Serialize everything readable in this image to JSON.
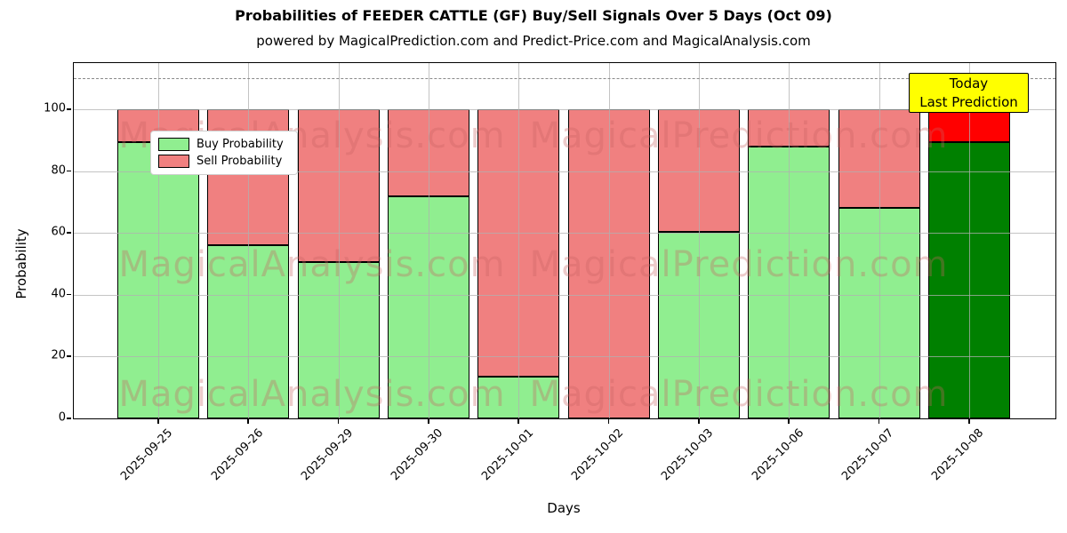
{
  "header": {
    "title": "Probabilities of FEEDER CATTLE (GF) Buy/Sell Signals Over 5 Days (Oct 09)",
    "subtitle": "powered by MagicalPrediction.com and Predict-Price.com and MagicalAnalysis.com"
  },
  "axes": {
    "ylabel": "Probability",
    "xlabel": "Days",
    "ytick_labels": [
      "0",
      "20",
      "40",
      "60",
      "80",
      "100"
    ]
  },
  "legend": {
    "items": [
      {
        "label": "Buy Probability",
        "color": "#90EE90"
      },
      {
        "label": "Sell Probability",
        "color": "#F08080"
      }
    ]
  },
  "annotation": {
    "lines": [
      "Today",
      "Last Prediction"
    ],
    "bg_color": "#ffff00"
  },
  "watermarks": {
    "left_text": "MagicalAnalysis.com",
    "right_text": "MagicalPrediction.com"
  },
  "chart_data": {
    "type": "bar",
    "stacked": true,
    "title": "Probabilities of FEEDER CATTLE (GF) Buy/Sell Signals Over 5 Days (Oct 09)",
    "xlabel": "Days",
    "ylabel": "Probability",
    "categories": [
      "2025-09-25",
      "2025-09-26",
      "2025-09-29",
      "2025-09-30",
      "2025-10-01",
      "2025-10-02",
      "2025-10-03",
      "2025-10-06",
      "2025-10-07",
      "2025-10-08"
    ],
    "series": [
      {
        "name": "Buy Probability",
        "values": [
          89.5,
          56,
          50.5,
          72,
          13.5,
          0,
          60.5,
          88,
          68,
          89.5
        ],
        "color": "#90EE90",
        "today_color": "#008000"
      },
      {
        "name": "Sell Probability",
        "values": [
          10.5,
          44,
          49.5,
          28,
          86.5,
          100,
          39.5,
          12,
          32,
          10.5
        ],
        "color": "#F08080",
        "today_color": "#FF0000"
      }
    ],
    "today_index": 9,
    "yticks": [
      0,
      20,
      40,
      60,
      80,
      100
    ],
    "ylim": [
      0,
      115
    ],
    "dashed_line_y": 110,
    "grid": true,
    "legend_position": "upper left"
  }
}
